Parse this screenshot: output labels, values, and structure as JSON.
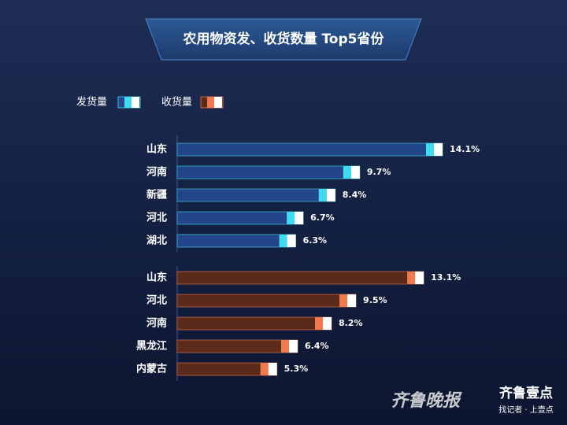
{
  "chart_data": {
    "type": "bar",
    "orientation": "horizontal",
    "title": "农用物资发、收货数量 Top5省份",
    "series": [
      {
        "name": "发货量",
        "color": "#23458c",
        "accent_color": "#3fdcef",
        "categories": [
          "山东",
          "河南",
          "新疆",
          "河北",
          "湖北"
        ],
        "values": [
          14.1,
          9.7,
          8.4,
          6.7,
          6.3
        ],
        "value_labels": [
          "14.1%",
          "9.7%",
          "8.4%",
          "6.7%",
          "6.3%"
        ]
      },
      {
        "name": "收货量",
        "color": "#5b2a1a",
        "accent_color": "#f07a4e",
        "categories": [
          "山东",
          "河北",
          "河南",
          "黑龙江",
          "内蒙古"
        ],
        "values": [
          13.1,
          9.5,
          8.2,
          6.4,
          5.3
        ],
        "value_labels": [
          "13.1%",
          "9.5%",
          "8.2%",
          "6.4%",
          "5.3%"
        ]
      }
    ]
  },
  "watermark": {
    "paper": "齐鲁晚报",
    "brand": "齐鲁壹点",
    "slogan": "找记者 · 上壹点"
  }
}
